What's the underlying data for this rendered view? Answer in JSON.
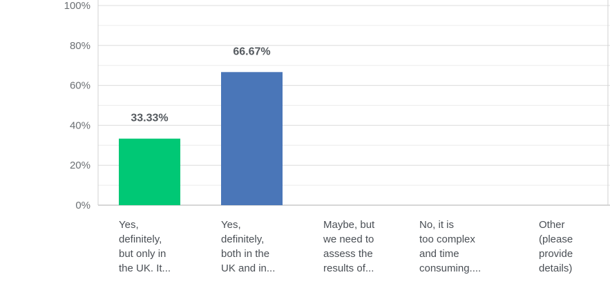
{
  "chart_data": {
    "type": "bar",
    "categories": [
      "Yes, definitely, but only in the UK. It...",
      "Yes, definitely, both in the UK and in...",
      "Maybe, but we need to assess the results of...",
      "No, it is too complex and time consuming....",
      "Other (please provide details)"
    ],
    "category_lines": [
      [
        "Yes,",
        "definitely,",
        "but only in",
        "the UK. It..."
      ],
      [
        "Yes,",
        "definitely,",
        "both in the",
        "UK and in..."
      ],
      [
        "Maybe, but",
        "we need to",
        "assess the",
        "results of..."
      ],
      [
        "No, it is",
        "too complex",
        "and time",
        "consuming...."
      ],
      [
        "Other",
        "(please",
        "provide",
        "details)"
      ]
    ],
    "values": [
      33.33,
      66.67,
      0,
      0,
      0
    ],
    "value_labels": [
      "33.33%",
      "66.67%",
      "",
      "",
      ""
    ],
    "bar_colors": [
      "#00c875",
      "#4a76b8",
      "#4a76b8",
      "#4a76b8",
      "#4a76b8"
    ],
    "ylim": [
      0,
      100
    ],
    "yticks": [
      0,
      20,
      40,
      60,
      80,
      100
    ],
    "ytick_labels": [
      "0%",
      "20%",
      "40%",
      "60%",
      "80%",
      "100%"
    ],
    "grid": true,
    "legend": "none",
    "title": "",
    "xlabel": "",
    "ylabel": ""
  }
}
